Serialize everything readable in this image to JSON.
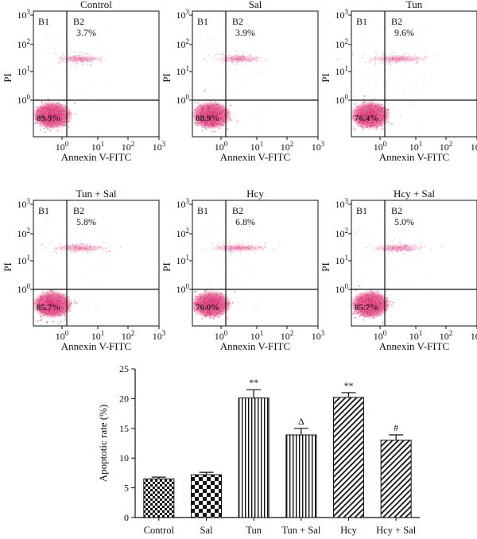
{
  "chart_data": [
    {
      "type": "scatter",
      "title": "Control",
      "xlabel": "Annexin V-FITC",
      "ylabel": "PI",
      "x_ticks": [
        "10",
        "10",
        "10",
        "10"
      ],
      "x_ticks_exp": [
        "0",
        "1",
        "2",
        "3"
      ],
      "y_ticks": [
        "10",
        "10",
        "10",
        "10"
      ],
      "y_ticks_exp": [
        "0",
        "1",
        "2",
        "3"
      ],
      "quadrants": [
        {
          "label": "B1",
          "value": ""
        },
        {
          "label": "B2",
          "value": "3.7%"
        },
        {
          "label": "B4",
          "value": "89.9%"
        }
      ]
    },
    {
      "type": "scatter",
      "title": "Sal",
      "xlabel": "Annexin V-FITC",
      "ylabel": "PI",
      "x_ticks": [
        "10",
        "10",
        "10",
        "10"
      ],
      "x_ticks_exp": [
        "0",
        "1",
        "2",
        "3"
      ],
      "y_ticks": [
        "10",
        "10",
        "10",
        "10"
      ],
      "y_ticks_exp": [
        "0",
        "1",
        "2",
        "3"
      ],
      "quadrants": [
        {
          "label": "B1",
          "value": ""
        },
        {
          "label": "B2",
          "value": "3.9%"
        },
        {
          "label": "B4",
          "value": "88.9%"
        }
      ]
    },
    {
      "type": "scatter",
      "title": "Tun",
      "xlabel": "Annexin V-FITC",
      "ylabel": "PI",
      "x_ticks": [
        "10",
        "10",
        "10",
        "10"
      ],
      "x_ticks_exp": [
        "0",
        "1",
        "2",
        "3"
      ],
      "y_ticks": [
        "10",
        "10",
        "10",
        "10"
      ],
      "y_ticks_exp": [
        "0",
        "1",
        "2",
        "3"
      ],
      "quadrants": [
        {
          "label": "B1",
          "value": ""
        },
        {
          "label": "B2",
          "value": "9.6%"
        },
        {
          "label": "B4",
          "value": "76.4%"
        }
      ]
    },
    {
      "type": "scatter",
      "title": "Tun + Sal",
      "xlabel": "Annexin V-FITC",
      "ylabel": "PI",
      "x_ticks": [
        "10",
        "10",
        "10",
        "10"
      ],
      "x_ticks_exp": [
        "0",
        "1",
        "2",
        "3"
      ],
      "y_ticks": [
        "10",
        "10",
        "10",
        "10"
      ],
      "y_ticks_exp": [
        "0",
        "1",
        "2",
        "3"
      ],
      "quadrants": [
        {
          "label": "B1",
          "value": ""
        },
        {
          "label": "B2",
          "value": "5.8%"
        },
        {
          "label": "B4",
          "value": "85.7%"
        }
      ]
    },
    {
      "type": "scatter",
      "title": "Hcy",
      "xlabel": "Annexin V-FITC",
      "ylabel": "PI",
      "x_ticks": [
        "10",
        "10",
        "10",
        "10"
      ],
      "x_ticks_exp": [
        "0",
        "1",
        "2",
        "3"
      ],
      "y_ticks": [
        "10",
        "10",
        "10",
        "10"
      ],
      "y_ticks_exp": [
        "0",
        "1",
        "2",
        "3"
      ],
      "quadrants": [
        {
          "label": "B1",
          "value": ""
        },
        {
          "label": "B2",
          "value": "6.8%"
        },
        {
          "label": "B4",
          "value": "76.0%"
        }
      ]
    },
    {
      "type": "scatter",
      "title": "Hcy + Sal",
      "xlabel": "Annexin V-FITC",
      "ylabel": "PI",
      "x_ticks": [
        "10",
        "10",
        "10",
        "10"
      ],
      "x_ticks_exp": [
        "0",
        "1",
        "2",
        "3"
      ],
      "y_ticks": [
        "10",
        "10",
        "10",
        "10"
      ],
      "y_ticks_exp": [
        "0",
        "1",
        "2",
        "3"
      ],
      "quadrants": [
        {
          "label": "B1",
          "value": ""
        },
        {
          "label": "B2",
          "value": "5.0%"
        },
        {
          "label": "B4",
          "value": "85.7%"
        }
      ]
    },
    {
      "type": "bar",
      "title": "",
      "xlabel": "",
      "ylabel": "Apoptotic rate (%)",
      "categories": [
        "Control",
        "Sal",
        "Tun",
        "Tun + Sal",
        "Hcy",
        "Hcy + Sal"
      ],
      "values": [
        6.5,
        7.2,
        20.1,
        13.9,
        20.2,
        13.0
      ],
      "errors": [
        0.3,
        0.4,
        1.4,
        1.1,
        0.8,
        0.9
      ],
      "annotations": [
        "",
        "",
        "**",
        "Δ",
        "**",
        "#"
      ],
      "patterns": [
        "checker-small",
        "checker-large",
        "vertical",
        "vertical",
        "diagonal",
        "diagonal"
      ],
      "ylim": [
        0,
        25
      ],
      "yticks": [
        0,
        5,
        10,
        15,
        20,
        25
      ],
      "grid": false
    }
  ],
  "colors": {
    "dots": "#d6337a",
    "dots_dense": "#e0447f",
    "axis": "#111111"
  }
}
